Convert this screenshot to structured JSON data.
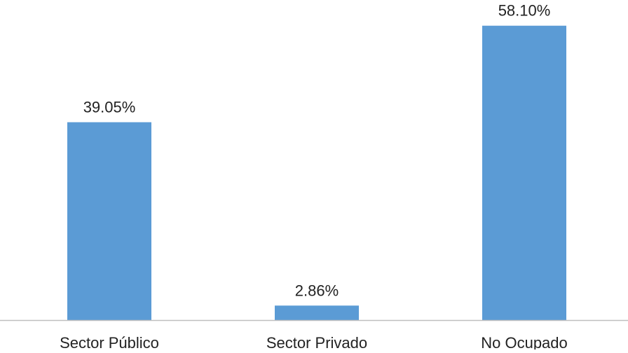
{
  "chart_data": {
    "type": "bar",
    "categories": [
      "Sector Público",
      "Sector Privado",
      "No Ocupado"
    ],
    "values": [
      39.05,
      2.86,
      58.1
    ],
    "data_labels": [
      "39.05%",
      "2.86%",
      "58.10%"
    ],
    "value_unit": "%",
    "title": "",
    "xlabel": "",
    "ylabel": "",
    "ylim": [
      0,
      60
    ],
    "grid": false,
    "legend": "none",
    "colors": {
      "bar": "#5b9bd5",
      "axis": "#bfbfbf",
      "text": "#222222"
    }
  }
}
